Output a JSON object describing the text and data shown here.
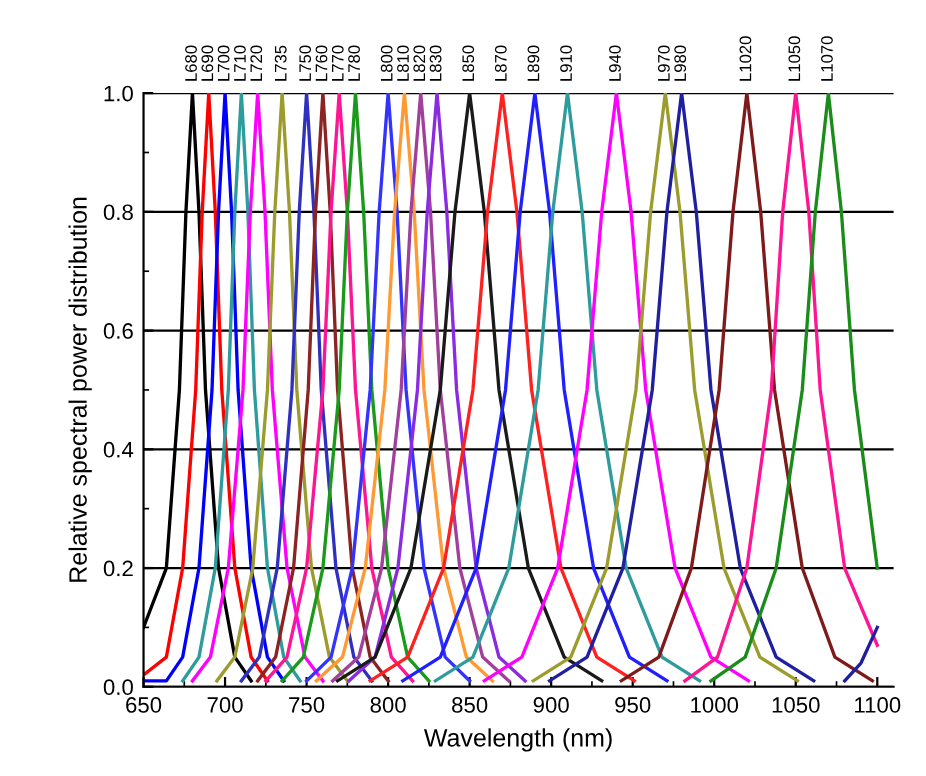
{
  "chart_data": {
    "type": "line",
    "xlabel": "Wavelength (nm)",
    "ylabel": "Relative spectral power distribution",
    "xlim": [
      650,
      1110
    ],
    "xticks": [
      650,
      700,
      750,
      800,
      850,
      900,
      950,
      1000,
      1050,
      1100
    ],
    "ylim": [
      0,
      1
    ],
    "yticks": [
      {
        "value": 0,
        "label": "0.0"
      },
      {
        "value": 0.2,
        "label": "0.2"
      },
      {
        "value": 0.4,
        "label": "0.4"
      },
      {
        "value": 0.6,
        "label": "0.6"
      },
      {
        "value": 0.8,
        "label": "0.8"
      },
      {
        "value": 1,
        "label": "1.0"
      }
    ],
    "grid": "y",
    "legend": false,
    "marker": "none",
    "line_style": "solid",
    "series": [
      {
        "name": "L680",
        "color": "#000000",
        "x": [
          650,
          664,
          672,
          676,
          680,
          684,
          688,
          696,
          706,
          716
        ],
        "values": [
          0.1,
          0.2,
          0.5,
          0.8,
          1,
          0.8,
          0.5,
          0.2,
          0.05,
          0.01
        ]
      },
      {
        "name": "L690",
        "color": "#ff0000",
        "x": [
          650,
          664,
          674,
          682,
          686,
          690,
          694,
          698,
          706,
          716,
          726
        ],
        "values": [
          0.02,
          0.05,
          0.2,
          0.5,
          0.8,
          1,
          0.8,
          0.5,
          0.2,
          0.05,
          0.01
        ]
      },
      {
        "name": "L700",
        "color": "#0000ff",
        "x": [
          650,
          664,
          674,
          684,
          692,
          696,
          700,
          704,
          708,
          716,
          726,
          736
        ],
        "values": [
          0.01,
          0.01,
          0.05,
          0.2,
          0.5,
          0.8,
          1,
          0.8,
          0.5,
          0.2,
          0.05,
          0.01
        ]
      },
      {
        "name": "L710",
        "color": "#2e9c9c",
        "x": [
          674,
          684,
          694,
          702,
          706,
          710,
          714,
          718,
          726,
          736,
          746
        ],
        "values": [
          0.01,
          0.05,
          0.2,
          0.5,
          0.8,
          1,
          0.8,
          0.5,
          0.2,
          0.05,
          0.01
        ]
      },
      {
        "name": "L720",
        "color": "#ff00ff",
        "x": [
          680,
          691,
          702,
          711,
          715.5,
          720,
          724.5,
          729,
          738,
          749,
          760
        ],
        "values": [
          0.01,
          0.05,
          0.2,
          0.5,
          0.8,
          1,
          0.8,
          0.5,
          0.2,
          0.05,
          0.01
        ]
      },
      {
        "name": "L735",
        "color": "#9c9c2e",
        "x": [
          695,
          706,
          717,
          726,
          730.5,
          735,
          739.5,
          744,
          753,
          764,
          775
        ],
        "values": [
          0.01,
          0.05,
          0.2,
          0.5,
          0.8,
          1,
          0.8,
          0.5,
          0.2,
          0.05,
          0.01
        ]
      },
      {
        "name": "L750",
        "color": "#3030c0",
        "x": [
          710,
          721,
          732,
          741,
          745.5,
          750,
          754.5,
          759,
          768,
          779,
          790
        ],
        "values": [
          0.01,
          0.05,
          0.2,
          0.5,
          0.8,
          1,
          0.8,
          0.5,
          0.2,
          0.05,
          0.01
        ]
      },
      {
        "name": "L760",
        "color": "#8b2323",
        "x": [
          720,
          731,
          742,
          751,
          755.5,
          760,
          764.5,
          769,
          778,
          789,
          800
        ],
        "values": [
          0.01,
          0.05,
          0.2,
          0.5,
          0.8,
          1,
          0.8,
          0.5,
          0.2,
          0.05,
          0.01
        ]
      },
      {
        "name": "L770",
        "color": "#ff1493",
        "x": [
          725,
          738,
          750,
          760,
          765,
          770,
          775,
          780,
          790,
          802,
          815
        ],
        "values": [
          0.01,
          0.05,
          0.2,
          0.5,
          0.8,
          1,
          0.8,
          0.5,
          0.2,
          0.05,
          0.01
        ]
      },
      {
        "name": "L780",
        "color": "#1a9a1a",
        "x": [
          735,
          748,
          760,
          770,
          775,
          780,
          785,
          790,
          800,
          812,
          825
        ],
        "values": [
          0.01,
          0.05,
          0.2,
          0.5,
          0.8,
          1,
          0.8,
          0.5,
          0.2,
          0.05,
          0.01
        ]
      },
      {
        "name": "L800",
        "color": "#3333ff",
        "x": [
          750,
          765,
          778,
          789,
          794.5,
          800,
          805.5,
          811,
          822,
          835,
          850
        ],
        "values": [
          0.01,
          0.05,
          0.2,
          0.5,
          0.8,
          1,
          0.8,
          0.5,
          0.2,
          0.05,
          0.01
        ]
      },
      {
        "name": "L810",
        "color": "#ff9933",
        "x": [
          756,
          772,
          786,
          798,
          804,
          810,
          816,
          822,
          834,
          848,
          864
        ],
        "values": [
          0.01,
          0.05,
          0.2,
          0.5,
          0.8,
          1,
          0.8,
          0.5,
          0.2,
          0.05,
          0.01
        ]
      },
      {
        "name": "L820",
        "color": "#a0409c",
        "x": [
          766,
          782,
          796,
          808,
          814,
          820,
          826,
          832,
          844,
          858,
          874
        ],
        "values": [
          0.01,
          0.05,
          0.2,
          0.5,
          0.8,
          1,
          0.8,
          0.5,
          0.2,
          0.05,
          0.01
        ]
      },
      {
        "name": "L830",
        "color": "#8a2be2",
        "x": [
          776,
          792,
          806,
          818,
          824,
          830,
          836,
          842,
          854,
          868,
          884
        ],
        "values": [
          0.01,
          0.05,
          0.2,
          0.5,
          0.8,
          1,
          0.8,
          0.5,
          0.2,
          0.05,
          0.01
        ]
      },
      {
        "name": "L850",
        "color": "#1a1a1a",
        "x": [
          769,
          792,
          814,
          832,
          841,
          850,
          859,
          868,
          886,
          908,
          931
        ],
        "values": [
          0.01,
          0.05,
          0.2,
          0.5,
          0.8,
          1,
          0.8,
          0.5,
          0.2,
          0.05,
          0.01
        ]
      },
      {
        "name": "L870",
        "color": "#ff2020",
        "x": [
          789,
          812,
          834,
          852,
          861,
          870,
          879,
          888,
          906,
          928,
          951
        ],
        "values": [
          0.01,
          0.05,
          0.2,
          0.5,
          0.8,
          1,
          0.8,
          0.5,
          0.2,
          0.05,
          0.01
        ]
      },
      {
        "name": "L890",
        "color": "#2020ff",
        "x": [
          809,
          832,
          854,
          872,
          881,
          890,
          899,
          908,
          926,
          948,
          971
        ],
        "values": [
          0.01,
          0.05,
          0.2,
          0.5,
          0.8,
          1,
          0.8,
          0.5,
          0.2,
          0.05,
          0.01
        ]
      },
      {
        "name": "L910",
        "color": "#2e9c9c",
        "x": [
          829,
          852,
          874,
          892,
          901,
          910,
          919,
          928,
          946,
          968,
          991
        ],
        "values": [
          0.01,
          0.05,
          0.2,
          0.5,
          0.8,
          1,
          0.8,
          0.5,
          0.2,
          0.05,
          0.01
        ]
      },
      {
        "name": "L940",
        "color": "#ff00ff",
        "x": [
          859,
          882,
          904,
          922,
          931,
          940,
          949,
          958,
          976,
          998,
          1021
        ],
        "values": [
          0.01,
          0.05,
          0.2,
          0.5,
          0.8,
          1,
          0.8,
          0.5,
          0.2,
          0.05,
          0.01
        ]
      },
      {
        "name": "L970",
        "color": "#9c9c2e",
        "x": [
          889,
          912,
          934,
          952,
          961,
          970,
          979,
          988,
          1006,
          1028,
          1051
        ],
        "values": [
          0.01,
          0.05,
          0.2,
          0.5,
          0.8,
          1,
          0.8,
          0.5,
          0.2,
          0.05,
          0.01
        ]
      },
      {
        "name": "L980",
        "color": "#1f1f9f",
        "x": [
          899,
          922,
          944,
          962,
          971,
          980,
          989,
          998,
          1016,
          1038,
          1061
        ],
        "values": [
          0.01,
          0.05,
          0.2,
          0.5,
          0.8,
          1,
          0.8,
          0.5,
          0.2,
          0.05,
          0.01
        ]
      },
      {
        "name": "L1020",
        "color": "#7f1a1a",
        "x": [
          943,
          966,
          986,
          1003,
          1011.5,
          1020,
          1028.5,
          1037,
          1054,
          1074,
          1097
        ],
        "values": [
          0.01,
          0.05,
          0.2,
          0.5,
          0.8,
          1,
          0.8,
          0.5,
          0.2,
          0.05,
          0.01
        ]
      },
      {
        "name": "L1050",
        "color": "#ff1493",
        "x": [
          982,
          1002,
          1020,
          1035,
          1042,
          1050,
          1058,
          1065,
          1080,
          1100
        ],
        "values": [
          0.01,
          0.05,
          0.2,
          0.5,
          0.8,
          1,
          0.8,
          0.5,
          0.2,
          0.07
        ]
      },
      {
        "name": "L1070",
        "color": "#1a8c1a",
        "x": [
          998,
          1019,
          1038,
          1054,
          1062,
          1070,
          1078,
          1086,
          1100
        ],
        "values": [
          0.01,
          0.05,
          0.2,
          0.5,
          0.8,
          1,
          0.8,
          0.5,
          0.2
        ]
      },
      {
        "color": "#1f1f9f",
        "x": [
          1080,
          1090,
          1100
        ],
        "values": [
          0.01,
          0.04,
          0.1
        ]
      }
    ]
  }
}
